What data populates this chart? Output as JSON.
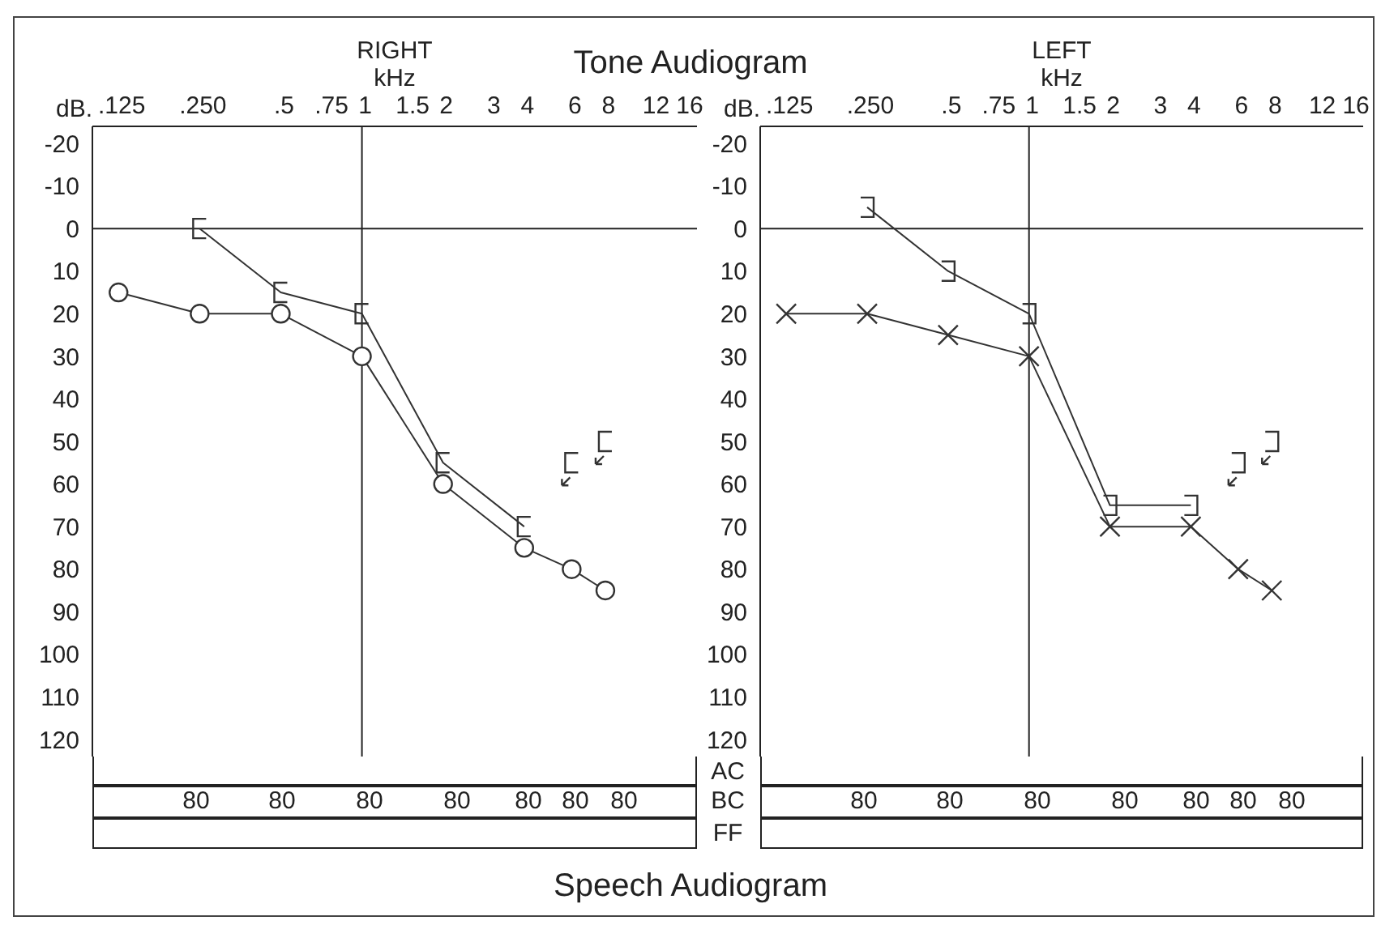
{
  "chart_data": [
    {
      "type": "line",
      "title": "Tone Audiogram",
      "subtitle": "RIGHT",
      "xlabel": "kHz",
      "ylabel": "dB.",
      "log": "x",
      "grid": false,
      "xlim": [
        0.1,
        17.5
      ],
      "xticks": [
        {
          "value": 0.125,
          "label": ".125"
        },
        {
          "value": 0.25,
          "label": ".250"
        },
        {
          "value": 0.5,
          "label": ".5"
        },
        {
          "value": 0.75,
          "label": ".75"
        },
        1,
        1.5,
        2,
        3,
        4,
        6,
        8,
        12,
        16
      ],
      "ylim": [
        124,
        -24
      ],
      "yticks": [
        -20,
        -10,
        0,
        10,
        20,
        30,
        40,
        50,
        60,
        70,
        80,
        90,
        100,
        110,
        120
      ],
      "ref_lines": [
        {
          "axis": "y",
          "value": 0
        },
        {
          "axis": "x",
          "value": 1
        }
      ],
      "series": [
        {
          "color": "#333333",
          "marker": "circle",
          "x": [
            0.125,
            0.25,
            0.5,
            1,
            2,
            4,
            6,
            8
          ],
          "values": [
            15,
            20,
            20,
            30,
            60,
            75,
            80,
            85
          ]
        },
        {
          "color": "#333333",
          "marker": "square",
          "x": [
            0.25,
            0.5,
            1,
            2,
            4
          ],
          "values": [
            0,
            15,
            20,
            55,
            70
          ]
        },
        {
          "type": "scatter",
          "color": "#333333",
          "x": [
            6,
            8
          ],
          "values": [
            55,
            50
          ]
        }
      ],
      "annotations": [
        "80",
        "80",
        "80",
        "80",
        "80",
        "80",
        "80",
        "Speech Audiogram"
      ]
    },
    {
      "type": "line",
      "subtitle": "LEFT",
      "xlabel": "kHz",
      "ylabel": "dB.",
      "log": "x",
      "grid": false,
      "xlim": [
        0.1,
        17.5
      ],
      "xticks": [
        {
          "value": 0.125,
          "label": ".125"
        },
        {
          "value": 0.25,
          "label": ".250"
        },
        {
          "value": 0.5,
          "label": ".5"
        },
        {
          "value": 0.75,
          "label": ".75"
        },
        1,
        1.5,
        2,
        3,
        4,
        6,
        8,
        12,
        16
      ],
      "ylim": [
        124,
        -24
      ],
      "yticks": [
        -20,
        -10,
        0,
        10,
        20,
        30,
        40,
        50,
        60,
        70,
        80,
        90,
        100,
        110,
        120
      ],
      "ref_lines": [
        {
          "axis": "y",
          "value": 0
        },
        {
          "axis": "x",
          "value": 1
        }
      ],
      "series": [
        {
          "color": "#333333",
          "marker": "cross",
          "x": [
            0.125,
            0.25,
            0.5,
            1,
            2,
            4,
            6,
            8
          ],
          "values": [
            20,
            20,
            25,
            30,
            70,
            70,
            80,
            85
          ]
        },
        {
          "color": "#333333",
          "marker": "square",
          "x": [
            0.25,
            0.5,
            1,
            2,
            4
          ],
          "values": [
            -5,
            10,
            20,
            65,
            65
          ]
        },
        {
          "type": "scatter",
          "color": "#333333",
          "x": [
            6,
            8
          ],
          "values": [
            55,
            50
          ]
        }
      ],
      "annotations": [
        "80",
        "80",
        "80",
        "80",
        "80",
        "80",
        "80",
        "AC",
        "BC",
        "FF"
      ]
    }
  ]
}
